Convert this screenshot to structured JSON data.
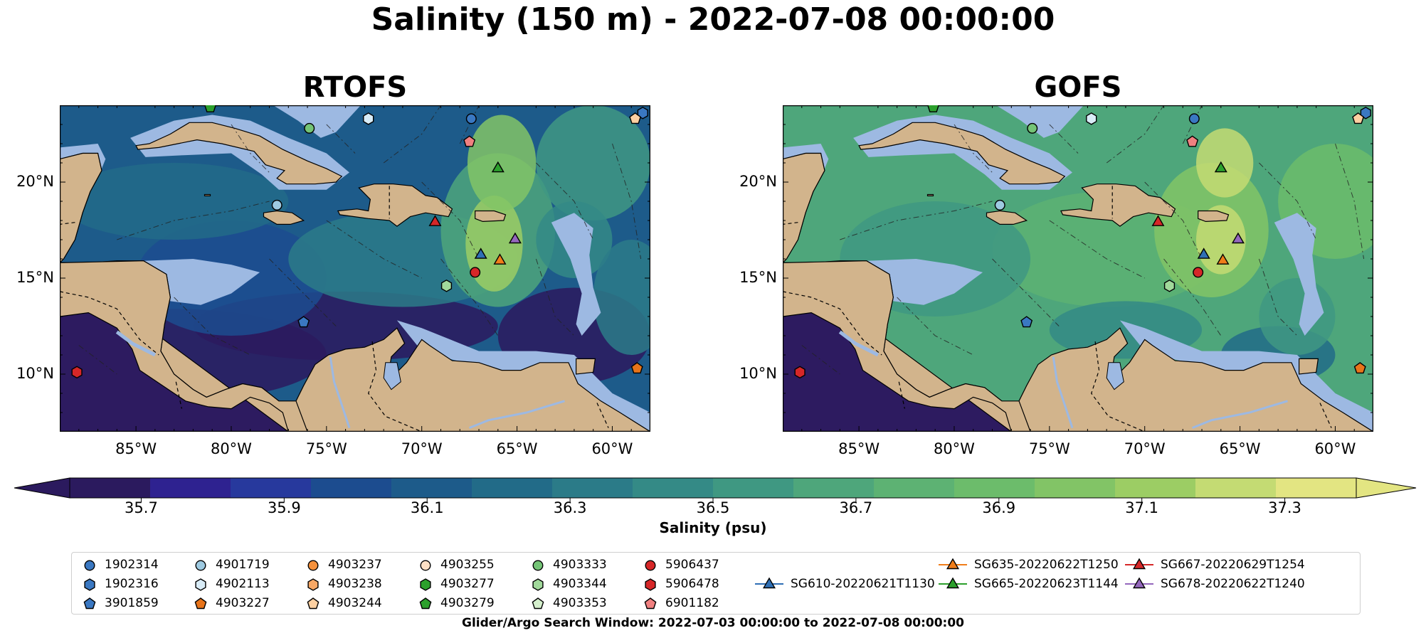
{
  "figure": {
    "title": "Salinity (150 m) - 2022-07-08 00:00:00",
    "footnote": "Glider/Argo Search Window: 2022-07-03 00:00:00 to 2022-07-08 00:00:00"
  },
  "colors": {
    "land": "#d2b48c",
    "shallow_water": "#9db9e2",
    "pacific": "#2d1b60",
    "colormap": [
      "#2b1a5e",
      "#2e2290",
      "#27399d",
      "#1c4c8f",
      "#1d5b8a",
      "#226b88",
      "#2b7b88",
      "#348a86",
      "#3f9882",
      "#4ea67b",
      "#5db273",
      "#6cbc6b",
      "#82c466",
      "#9ccd64",
      "#c4db73",
      "#e3e582"
    ]
  },
  "chart_data": [
    {
      "type": "heatmap",
      "title": "RTOFS",
      "xlim": [
        -89,
        -58
      ],
      "ylim": [
        7,
        24
      ],
      "x_ticks": [
        "85°W",
        "80°W",
        "75°W",
        "70°W",
        "65°W",
        "60°W"
      ],
      "x_tick_values": [
        -85,
        -80,
        -75,
        -70,
        -65,
        -60
      ],
      "y_ticks": [
        "10°N",
        "15°N",
        "20°N"
      ],
      "y_tick_values": [
        10,
        15,
        20
      ]
    },
    {
      "type": "heatmap",
      "title": "GOFS",
      "xlim": [
        -89,
        -58
      ],
      "ylim": [
        7,
        24
      ],
      "x_ticks": [
        "85°W",
        "80°W",
        "75°W",
        "70°W",
        "65°W",
        "60°W"
      ],
      "x_tick_values": [
        -85,
        -80,
        -75,
        -70,
        -65,
        -60
      ],
      "y_ticks": [
        "10°N",
        "15°N",
        "20°N"
      ],
      "y_tick_values": [
        10,
        15,
        20
      ]
    },
    {
      "type": "colorbar",
      "label": "Salinity (psu)",
      "range": [
        35.6,
        37.4
      ],
      "tick_values": [
        35.7,
        35.9,
        36.1,
        36.3,
        36.5,
        36.7,
        36.9,
        37.1,
        37.3
      ],
      "tick_labels": [
        "35.7",
        "35.9",
        "36.1",
        "36.3",
        "36.5",
        "36.7",
        "36.9",
        "37.1",
        "37.3"
      ]
    }
  ],
  "markers": [
    {
      "name": "1902314",
      "shape": "circle",
      "color": "#3a78c2",
      "lon": -67.4,
      "lat": 23.3
    },
    {
      "name": "1902316",
      "shape": "hexagon",
      "color": "#3a78c2",
      "lon": -58.4,
      "lat": 23.6
    },
    {
      "name": "3901859",
      "shape": "pentagon",
      "color": "#3a78c2",
      "lon": -76.2,
      "lat": 12.7
    },
    {
      "name": "4901719",
      "shape": "circle",
      "color": "#9ecae1",
      "lon": -77.6,
      "lat": 18.8
    },
    {
      "name": "4902113",
      "shape": "hexagon",
      "color": "#d9ecf7",
      "lon": -72.8,
      "lat": 23.3
    },
    {
      "name": "4903227",
      "shape": "pentagon",
      "color": "#e8741a",
      "lon": -58.7,
      "lat": 10.3
    },
    {
      "name": "4903244",
      "shape": "pentagon",
      "color": "#fdd0a2",
      "lon": -58.8,
      "lat": 23.3
    },
    {
      "name": "4903279",
      "shape": "pentagon",
      "color": "#2ca02c",
      "lon": -81.1,
      "lat": 23.9
    },
    {
      "name": "4903333",
      "shape": "circle",
      "color": "#74c476",
      "lon": -75.9,
      "lat": 22.8
    },
    {
      "name": "4903344",
      "shape": "hexagon",
      "color": "#a1d99b",
      "lon": -68.7,
      "lat": 14.6
    },
    {
      "name": "5906437",
      "shape": "circle",
      "color": "#d62728",
      "lon": -67.2,
      "lat": 15.3
    },
    {
      "name": "5906478",
      "shape": "hexagon",
      "color": "#d62728",
      "lon": -88.1,
      "lat": 10.1
    },
    {
      "name": "6901182",
      "shape": "pentagon",
      "color": "#f08080",
      "lon": -67.5,
      "lat": 22.1
    },
    {
      "name": "SG610-20220621T1130",
      "shape": "triangle",
      "color": "#2f6fb5",
      "lon": -66.9,
      "lat": 16.2
    },
    {
      "name": "SG635-20220622T1250",
      "shape": "triangle",
      "color": "#f07d1a",
      "lon": -65.9,
      "lat": 15.9
    },
    {
      "name": "SG665-20220623T1144",
      "shape": "triangle",
      "color": "#2ca02c",
      "lon": -66.0,
      "lat": 20.7
    },
    {
      "name": "SG667-20220629T1254",
      "shape": "triangle",
      "color": "#d62728",
      "lon": -69.3,
      "lat": 17.9
    },
    {
      "name": "SG678-20220622T1240",
      "shape": "triangle",
      "color": "#9467bd",
      "lon": -65.1,
      "lat": 17.0
    }
  ],
  "legend": [
    {
      "label": "1902314",
      "shape": "circle",
      "color": "#3a78c2"
    },
    {
      "label": "1902316",
      "shape": "hexagon",
      "color": "#3a78c2"
    },
    {
      "label": "3901859",
      "shape": "pentagon",
      "color": "#3a78c2"
    },
    {
      "label": "4901719",
      "shape": "circle",
      "color": "#9ecae1"
    },
    {
      "label": "4902113",
      "shape": "hexagon",
      "color": "#d9ecf7"
    },
    {
      "label": "4903227",
      "shape": "pentagon",
      "color": "#e8741a"
    },
    {
      "label": "4903237",
      "shape": "circle",
      "color": "#f5913c"
    },
    {
      "label": "4903238",
      "shape": "hexagon",
      "color": "#f7a866"
    },
    {
      "label": "4903244",
      "shape": "pentagon",
      "color": "#fdd0a2"
    },
    {
      "label": "4903255",
      "shape": "circle",
      "color": "#fde0c5"
    },
    {
      "label": "4903277",
      "shape": "hexagon",
      "color": "#2ca02c"
    },
    {
      "label": "4903279",
      "shape": "pentagon",
      "color": "#2ca02c"
    },
    {
      "label": "4903333",
      "shape": "circle",
      "color": "#74c476"
    },
    {
      "label": "4903344",
      "shape": "hexagon",
      "color": "#a1d99b"
    },
    {
      "label": "4903353",
      "shape": "pentagon",
      "color": "#d5f0cd"
    },
    {
      "label": "5906437",
      "shape": "circle",
      "color": "#d62728"
    },
    {
      "label": "5906478",
      "shape": "hexagon",
      "color": "#d62728"
    },
    {
      "label": "6901182",
      "shape": "pentagon",
      "color": "#f08080"
    },
    {
      "label": "SG610-20220621T1130",
      "shape": "triangle-line",
      "color": "#2f6fb5"
    },
    {
      "label": "SG635-20220622T1250",
      "shape": "triangle-line",
      "color": "#f07d1a"
    },
    {
      "label": "SG665-20220623T1144",
      "shape": "triangle-line",
      "color": "#2ca02c"
    },
    {
      "label": "SG667-20220629T1254",
      "shape": "triangle-line",
      "color": "#d62728"
    },
    {
      "label": "SG678-20220622T1240",
      "shape": "triangle-line",
      "color": "#9467bd"
    }
  ]
}
